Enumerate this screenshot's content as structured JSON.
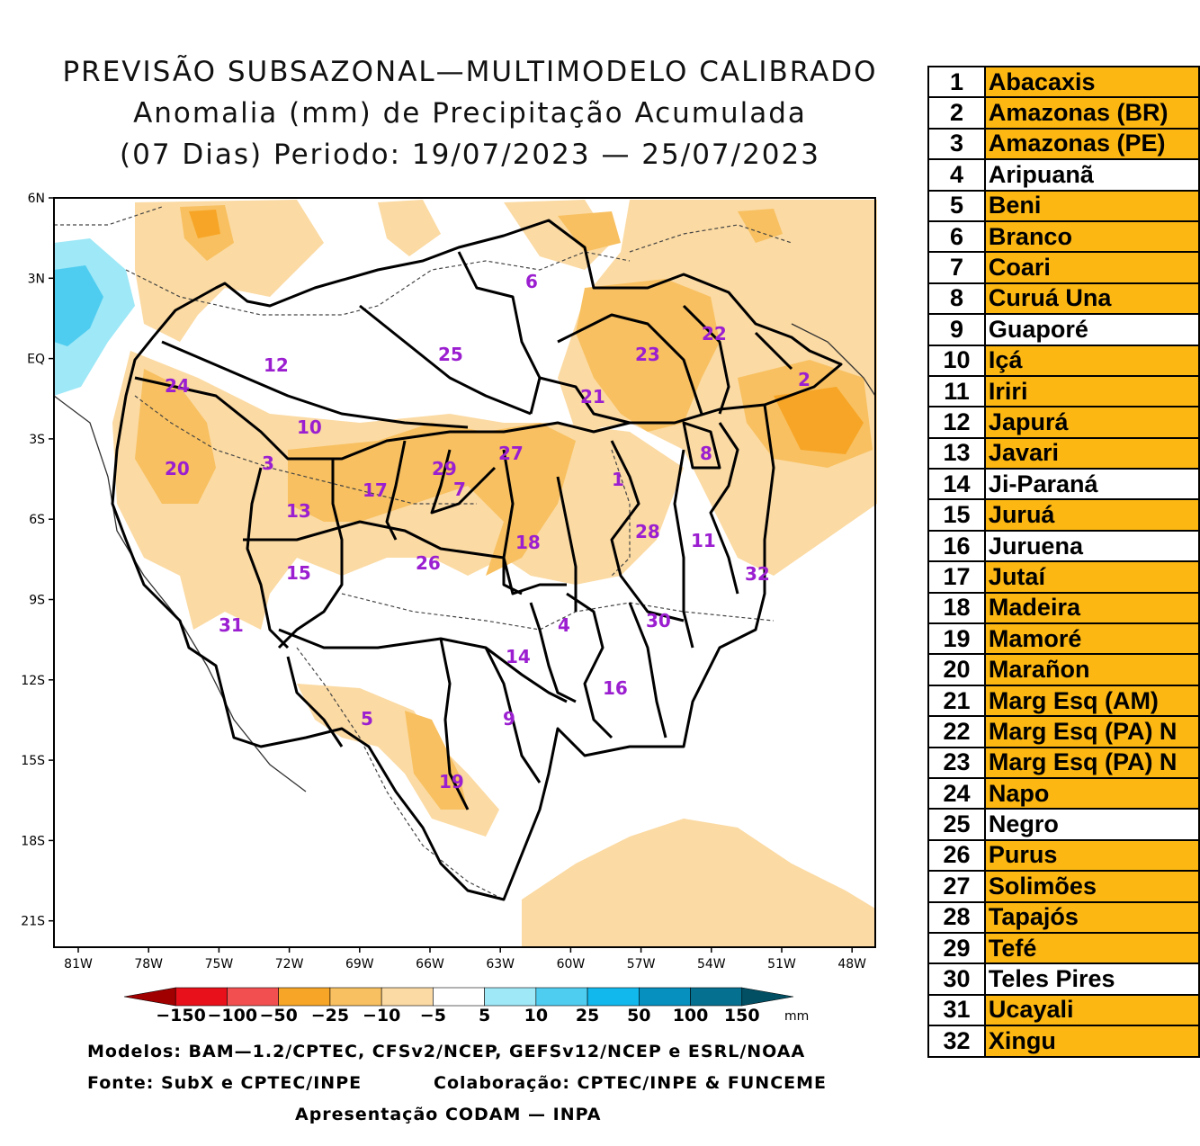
{
  "title": {
    "line1": "PREVISÃO SUBSAZONAL—MULTIMODELO CALIBRADO",
    "line2": "Anomalia (mm) de Precipitação Acumulada",
    "line3": "(07 Dias) Periodo: 19/07/2023 — 25/07/2023"
  },
  "axes": {
    "lat_labels": [
      "6N",
      "3N",
      "EQ",
      "3S",
      "6S",
      "9S",
      "12S",
      "15S",
      "18S",
      "21S"
    ],
    "lon_labels": [
      "81W",
      "78W",
      "75W",
      "72W",
      "69W",
      "66W",
      "63W",
      "60W",
      "57W",
      "54W",
      "51W",
      "48W"
    ]
  },
  "map_labels": {
    "b1": "1",
    "b2": "2",
    "b3": "3",
    "b4": "4",
    "b5": "5",
    "b6": "6",
    "b7": "7",
    "b8": "8",
    "b9": "9",
    "b10": "10",
    "b11": "11",
    "b12": "12",
    "b13": "13",
    "b14": "14",
    "b15": "15",
    "b16": "16",
    "b17": "17",
    "b18": "18",
    "b19": "19",
    "b20": "20",
    "b21": "21",
    "b22": "22",
    "b23": "23",
    "b24": "24",
    "b25": "25",
    "b26": "26",
    "b27": "27",
    "b28": "28",
    "b29": "29",
    "b30": "30",
    "b31": "31",
    "b32": "32"
  },
  "colorbar": {
    "ticks": [
      "−150",
      "−100",
      "−50",
      "−25",
      "−10",
      "−5",
      "5",
      "10",
      "25",
      "50",
      "100",
      "150"
    ],
    "unit": "mm",
    "colors": [
      "#a00000",
      "#e8101a",
      "#f25050",
      "#f7a526",
      "#f8c060",
      "#fbdaa3",
      "#ffffff",
      "#9ee8f7",
      "#4fcdf0",
      "#10b8ee",
      "#0590c0",
      "#05708f",
      "#024f64"
    ]
  },
  "footer": {
    "models": "Modelos: BAM—1.2/CPTEC, CFSv2/NCEP, GEFSv12/NCEP e ESRL/NOAA",
    "source": "Fonte: SubX e CPTEC/INPE",
    "collab": "Colaboração: CPTEC/INPE & FUNCEME",
    "presentation": "Apresentação CODAM — INPA"
  },
  "basins": [
    {
      "n": "1",
      "name": "Abacaxis",
      "fill": "orange"
    },
    {
      "n": "2",
      "name": "Amazonas (BR)",
      "fill": "orange"
    },
    {
      "n": "3",
      "name": "Amazonas (PE)",
      "fill": "orange"
    },
    {
      "n": "4",
      "name": "Aripuanã",
      "fill": "white"
    },
    {
      "n": "5",
      "name": "Beni",
      "fill": "orange"
    },
    {
      "n": "6",
      "name": "Branco",
      "fill": "orange"
    },
    {
      "n": "7",
      "name": "Coari",
      "fill": "orange"
    },
    {
      "n": "8",
      "name": "Curuá Una",
      "fill": "orange"
    },
    {
      "n": "9",
      "name": "Guaporé",
      "fill": "white"
    },
    {
      "n": "10",
      "name": "Içá",
      "fill": "orange"
    },
    {
      "n": "11",
      "name": "Iriri",
      "fill": "orange"
    },
    {
      "n": "12",
      "name": "Japurá",
      "fill": "orange"
    },
    {
      "n": "13",
      "name": "Javari",
      "fill": "orange"
    },
    {
      "n": "14",
      "name": "Ji-Paraná",
      "fill": "white"
    },
    {
      "n": "15",
      "name": "Juruá",
      "fill": "orange"
    },
    {
      "n": "16",
      "name": "Juruena",
      "fill": "white"
    },
    {
      "n": "17",
      "name": "Jutaí",
      "fill": "orange"
    },
    {
      "n": "18",
      "name": "Madeira",
      "fill": "orange"
    },
    {
      "n": "19",
      "name": "Mamoré",
      "fill": "orange"
    },
    {
      "n": "20",
      "name": "Marañon",
      "fill": "orange"
    },
    {
      "n": "21",
      "name": "Marg Esq (AM)",
      "fill": "orange"
    },
    {
      "n": "22",
      "name": "Marg Esq (PA) N",
      "fill": "orange"
    },
    {
      "n": "23",
      "name": "Marg Esq (PA) N",
      "fill": "orange"
    },
    {
      "n": "24",
      "name": "Napo",
      "fill": "orange"
    },
    {
      "n": "25",
      "name": "Negro",
      "fill": "white"
    },
    {
      "n": "26",
      "name": "Purus",
      "fill": "orange"
    },
    {
      "n": "27",
      "name": "Solimões",
      "fill": "orange"
    },
    {
      "n": "28",
      "name": "Tapajós",
      "fill": "orange"
    },
    {
      "n": "29",
      "name": "Tefé",
      "fill": "orange"
    },
    {
      "n": "30",
      "name": "Teles Pires",
      "fill": "white"
    },
    {
      "n": "31",
      "name": "Ucayali",
      "fill": "orange"
    },
    {
      "n": "32",
      "name": "Xingu",
      "fill": "orange"
    }
  ]
}
